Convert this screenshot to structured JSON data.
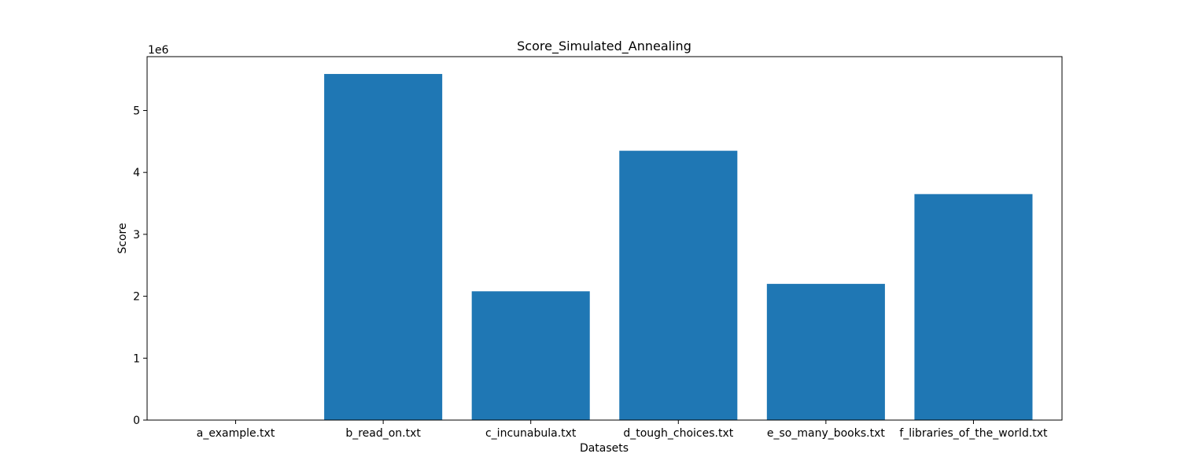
{
  "chart_data": {
    "type": "bar",
    "title": "Score_Simulated_Annealing",
    "xlabel": "Datasets",
    "ylabel": "Score",
    "y_offset_label": "1e6",
    "categories": [
      "a_example.txt",
      "b_read_on.txt",
      "c_incunabula.txt",
      "d_tough_choices.txt",
      "e_so_many_books.txt",
      "f_libraries_of_the_world.txt"
    ],
    "values": [
      21,
      5590000,
      2080000,
      4350000,
      2200000,
      3650000
    ],
    "ylim": [
      0,
      5870000
    ],
    "yticks": [
      0,
      1000000,
      2000000,
      3000000,
      4000000,
      5000000
    ],
    "ytick_labels": [
      "0",
      "1",
      "2",
      "3",
      "4",
      "5"
    ],
    "bar_color": "#1f77b4",
    "grid": false
  }
}
